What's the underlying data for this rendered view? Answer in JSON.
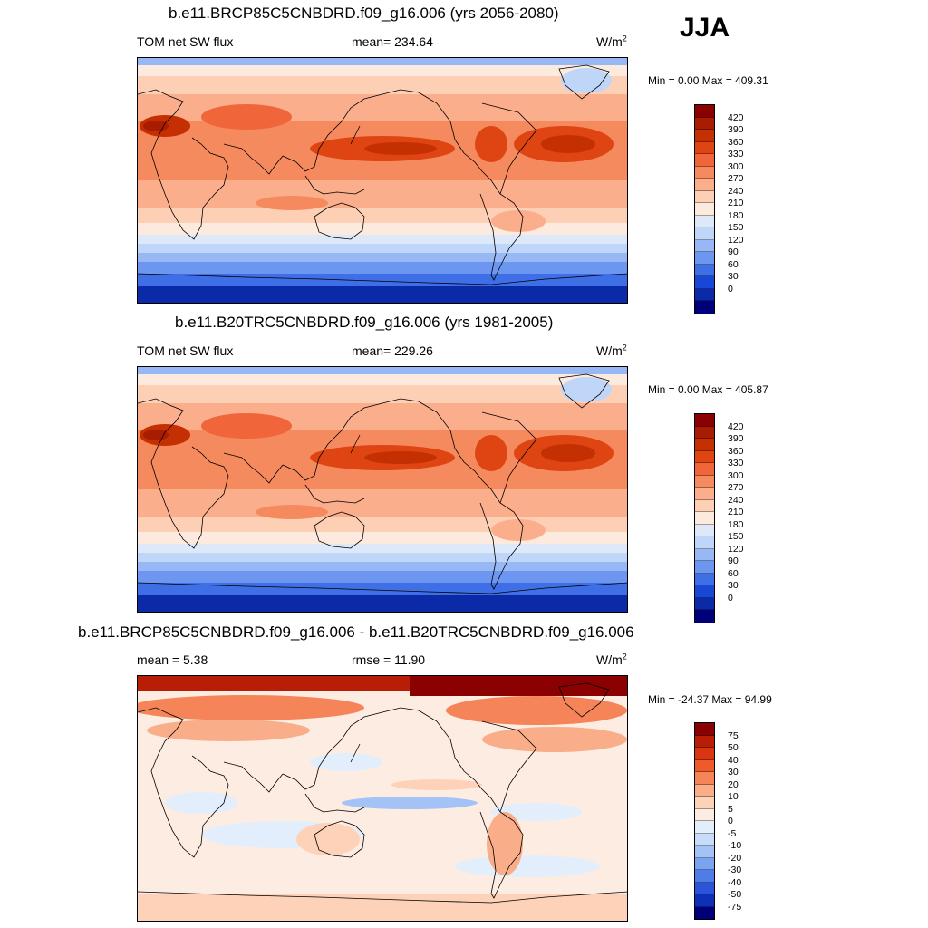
{
  "season": "JJA",
  "panels": [
    {
      "id": "future",
      "title": "b.e11.BRCP85C5CNBDRD.f09_g16.006 (yrs 2056-2080)",
      "left_label": "TOM net SW flux",
      "center_label": "mean= 234.64",
      "unit_base": "W/m",
      "unit_exp": "2",
      "minmax": "Min =   0.00 Max = 409.31",
      "colorbar": {
        "labels": [
          "420",
          "390",
          "360",
          "330",
          "300",
          "270",
          "240",
          "210",
          "180",
          "150",
          "120",
          "90",
          "60",
          "30",
          "0"
        ],
        "colors": [
          "#8b0000",
          "#a81c02",
          "#c53003",
          "#df4513",
          "#f0663a",
          "#f58a5e",
          "#fbae8c",
          "#fdd0b6",
          "#fdeadf",
          "#dde9f9",
          "#bfd6f8",
          "#97b8f5",
          "#6c96f0",
          "#3f6fe6",
          "#1847d6",
          "#0a2aa8",
          "#00007a"
        ]
      },
      "map": {
        "type": "absolute"
      }
    },
    {
      "id": "present",
      "title": "b.e11.B20TRC5CNBDRD.f09_g16.006 (yrs 1981-2005)",
      "left_label": "TOM net SW flux",
      "center_label": "mean= 229.26",
      "unit_base": "W/m",
      "unit_exp": "2",
      "minmax": "Min =   0.00 Max = 405.87",
      "colorbar": {
        "labels": [
          "420",
          "390",
          "360",
          "330",
          "300",
          "270",
          "240",
          "210",
          "180",
          "150",
          "120",
          "90",
          "60",
          "30",
          "0"
        ],
        "colors": [
          "#8b0000",
          "#a81c02",
          "#c53003",
          "#df4513",
          "#f0663a",
          "#f58a5e",
          "#fbae8c",
          "#fdd0b6",
          "#fdeadf",
          "#dde9f9",
          "#bfd6f8",
          "#97b8f5",
          "#6c96f0",
          "#3f6fe6",
          "#1847d6",
          "#0a2aa8",
          "#00007a"
        ]
      },
      "map": {
        "type": "absolute"
      }
    },
    {
      "id": "diff",
      "title": "b.e11.BRCP85C5CNBDRD.f09_g16.006 - b.e11.B20TRC5CNBDRD.f09_g16.006",
      "left_label": "mean =   5.38",
      "center_label": "rmse =  11.90",
      "unit_base": "W/m",
      "unit_exp": "2",
      "minmax": "Min = -24.37 Max =  94.99",
      "colorbar": {
        "labels": [
          "75",
          "50",
          "40",
          "30",
          "20",
          "10",
          "5",
          "0",
          "-5",
          "-10",
          "-20",
          "-30",
          "-40",
          "-50",
          "-75"
        ],
        "colors": [
          "#8b0000",
          "#b81e05",
          "#d83510",
          "#ef5a2a",
          "#f58558",
          "#f9ad88",
          "#fdd2b8",
          "#fdece2",
          "#e3eefc",
          "#c7dcf9",
          "#a3c3f6",
          "#7aa3f0",
          "#4f7de8",
          "#2a55da",
          "#0e2fb8",
          "#00007a"
        ]
      },
      "map": {
        "type": "difference"
      }
    }
  ]
}
